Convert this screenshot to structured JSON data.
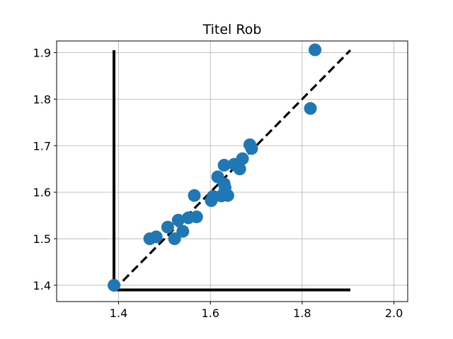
{
  "chart_data": {
    "type": "scatter",
    "title": "Titel Rob",
    "xlabel": "",
    "ylabel": "",
    "xlim": [
      1.265,
      2.03
    ],
    "ylim": [
      1.365,
      1.925
    ],
    "xticks": [
      1.4,
      1.6,
      1.8,
      2.0
    ],
    "xtick_labels": [
      "1.4",
      "1.6",
      "1.8",
      "2.0"
    ],
    "yticks": [
      1.4,
      1.5,
      1.6,
      1.7,
      1.8,
      1.9
    ],
    "ytick_labels": [
      "1.4",
      "1.5",
      "1.6",
      "1.7",
      "1.8",
      "1.9"
    ],
    "grid": true,
    "colors": {
      "points": "#1f77b4",
      "lines": "#000000",
      "grid": "#b0b0b0"
    },
    "points": [
      {
        "x": 1.39,
        "y": 1.4
      },
      {
        "x": 1.468,
        "y": 1.5
      },
      {
        "x": 1.482,
        "y": 1.504
      },
      {
        "x": 1.507,
        "y": 1.525
      },
      {
        "x": 1.522,
        "y": 1.5
      },
      {
        "x": 1.53,
        "y": 1.54
      },
      {
        "x": 1.54,
        "y": 1.516
      },
      {
        "x": 1.552,
        "y": 1.545
      },
      {
        "x": 1.57,
        "y": 1.547
      },
      {
        "x": 1.565,
        "y": 1.593
      },
      {
        "x": 1.602,
        "y": 1.582
      },
      {
        "x": 1.606,
        "y": 1.591
      },
      {
        "x": 1.616,
        "y": 1.633
      },
      {
        "x": 1.624,
        "y": 1.592
      },
      {
        "x": 1.63,
        "y": 1.618
      },
      {
        "x": 1.632,
        "y": 1.61
      },
      {
        "x": 1.638,
        "y": 1.593
      },
      {
        "x": 1.63,
        "y": 1.658
      },
      {
        "x": 1.652,
        "y": 1.66
      },
      {
        "x": 1.664,
        "y": 1.65
      },
      {
        "x": 1.67,
        "y": 1.672
      },
      {
        "x": 1.686,
        "y": 1.702
      },
      {
        "x": 1.69,
        "y": 1.694
      },
      {
        "x": 1.818,
        "y": 1.78
      },
      {
        "x": 1.828,
        "y": 1.906
      }
    ],
    "diagonal": {
      "x": [
        1.39,
        1.905
      ],
      "y": [
        1.39,
        1.905
      ],
      "style": "dashed"
    },
    "vertical_bar": {
      "x": 1.39,
      "y": [
        1.39,
        1.905
      ]
    },
    "horizontal_bar": {
      "y": 1.39,
      "x": [
        1.39,
        1.905
      ]
    }
  }
}
